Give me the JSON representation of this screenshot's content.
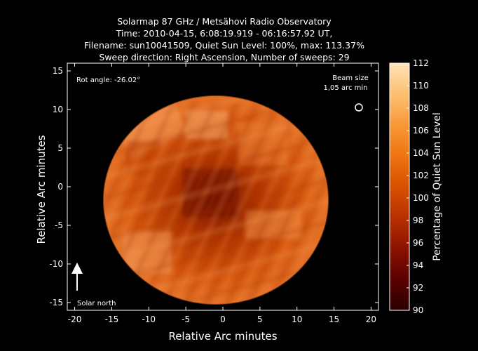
{
  "title": {
    "line1": "Solarmap 87 GHz / Metsähovi Radio Observatory",
    "line2": "Time: 2010-04-15,  6:08:19.919 - 06:16:57.92 UT,",
    "line3": "Filename: sun10041509, Quiet Sun Level: 100%, max: 113.37%",
    "line4": "Sweep direction: Right Ascension, Number of sweeps: 29"
  },
  "axes": {
    "xlabel": "Relative Arc minutes",
    "ylabel": "Relative Arc minutes",
    "x_range": [
      -21,
      21
    ],
    "y_range": [
      -16,
      16
    ],
    "x_ticks": [
      -20,
      -15,
      -10,
      -5,
      0,
      5,
      10,
      15,
      20
    ],
    "y_ticks": [
      15,
      10,
      5,
      0,
      -5,
      -10,
      -15
    ]
  },
  "annotations": {
    "rot_angle": "Rot angle: -26.02°",
    "beam_size_line1": "Beam size",
    "beam_size_line2": "1,05 arc min",
    "solar_north": "Solar north"
  },
  "colorbar": {
    "label": "Percentage of Quiet Sun Level",
    "range": [
      90,
      112
    ],
    "ticks": [
      112,
      110,
      108,
      106,
      104,
      102,
      100,
      98,
      96,
      94,
      92,
      90
    ],
    "colors": [
      "#2a0000",
      "#5a0000",
      "#8c1200",
      "#b83000",
      "#d85000",
      "#ee7410",
      "#f89838",
      "#fcc070",
      "#ffe4b8"
    ]
  }
}
